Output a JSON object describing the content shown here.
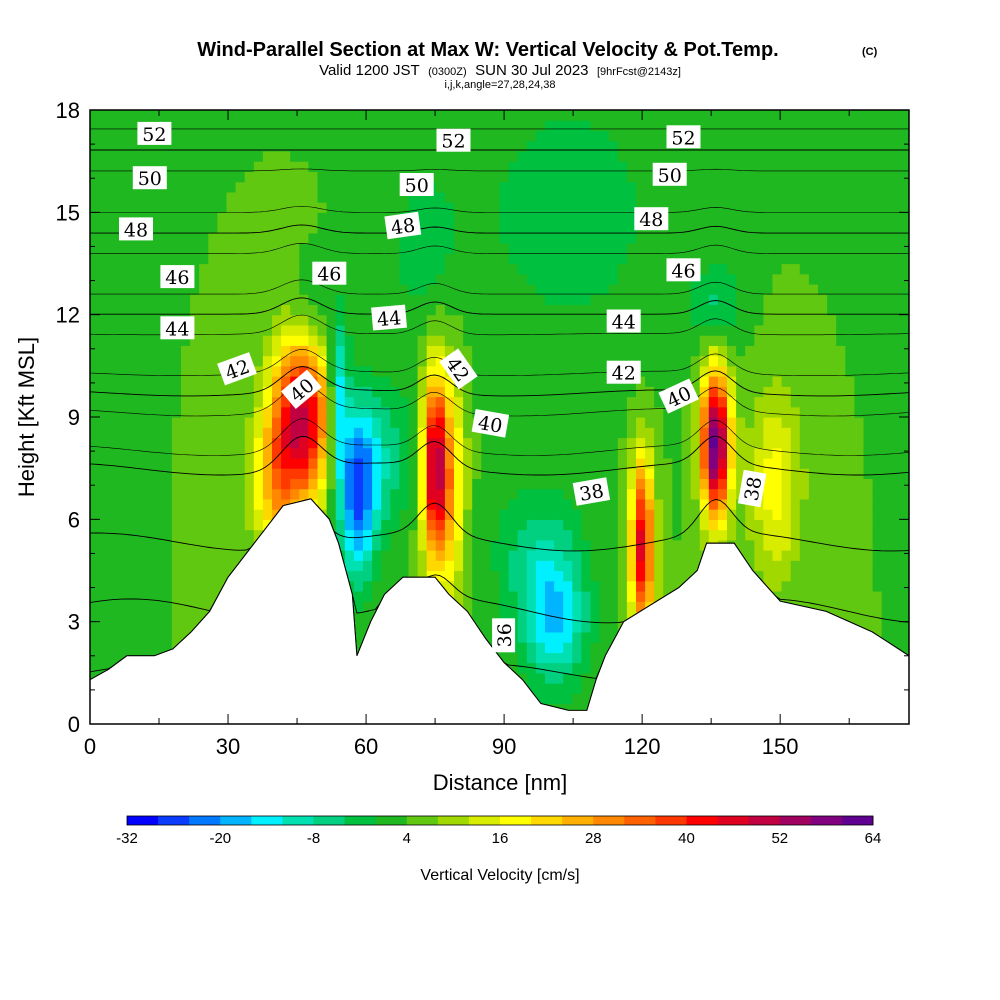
{
  "chart_data": {
    "type": "heatmap",
    "title": "Wind-Parallel Section at Max W: Vertical Velocity & Pot.Temp.",
    "copyright": "(C)",
    "subtitle": {
      "prefix": "Valid 1200 JST",
      "utc": "(0300Z)",
      "date": "SUN 30 Jul 2023",
      "fcst": "[9hrFcst@2143z]"
    },
    "indices": "i,j,k,angle=27,28,24,38",
    "xlabel": "Distance [nm]",
    "ylabel": "Height [Kft MSL]",
    "xlim": [
      0,
      178
    ],
    "ylim": [
      0,
      18
    ],
    "x_ticks": [
      "0",
      "30",
      "60",
      "90",
      "120",
      "150"
    ],
    "y_ticks": [
      "0",
      "3",
      "6",
      "9",
      "12",
      "15",
      "18"
    ],
    "colorbar": {
      "label": "Vertical Velocity [cm/s]",
      "tick_labels": [
        "-32",
        "-20",
        "-8",
        "4",
        "16",
        "28",
        "40",
        "52",
        "64"
      ],
      "colors": [
        "#0000ff",
        "#0a3cff",
        "#0078ff",
        "#00b4ff",
        "#00f0ff",
        "#00e0b0",
        "#00d080",
        "#00c040",
        "#20b820",
        "#60c810",
        "#a0d800",
        "#d8ec00",
        "#ffff00",
        "#ffd800",
        "#ffb000",
        "#ff8800",
        "#ff6000",
        "#ff3800",
        "#ff0000",
        "#e00020",
        "#c00040",
        "#a00060",
        "#800080",
        "#600090"
      ]
    },
    "background_value": 4,
    "terrain_profile": [
      [
        0,
        1.3
      ],
      [
        4,
        1.6
      ],
      [
        8,
        2.0
      ],
      [
        14,
        2.0
      ],
      [
        18,
        2.2
      ],
      [
        22,
        2.7
      ],
      [
        26,
        3.3
      ],
      [
        30,
        4.3
      ],
      [
        34,
        5.0
      ],
      [
        38,
        5.7
      ],
      [
        42,
        6.4
      ],
      [
        48,
        6.6
      ],
      [
        52,
        6.0
      ],
      [
        54,
        5.3
      ],
      [
        57,
        3.8
      ],
      [
        58,
        2.0
      ],
      [
        61,
        3.0
      ],
      [
        64,
        3.8
      ],
      [
        68,
        4.3
      ],
      [
        75,
        4.3
      ],
      [
        78,
        3.8
      ],
      [
        82,
        3.3
      ],
      [
        86,
        2.5
      ],
      [
        90,
        1.8
      ],
      [
        94,
        1.3
      ],
      [
        98,
        0.6
      ],
      [
        104,
        0.4
      ],
      [
        108,
        0.4
      ],
      [
        110,
        1.3
      ],
      [
        112,
        2.0
      ],
      [
        116,
        3.0
      ],
      [
        122,
        3.5
      ],
      [
        128,
        4.0
      ],
      [
        132,
        4.5
      ],
      [
        134,
        5.3
      ],
      [
        140,
        5.3
      ],
      [
        144,
        4.5
      ],
      [
        150,
        3.6
      ],
      [
        160,
        3.3
      ],
      [
        170,
        2.7
      ],
      [
        178,
        2.0
      ]
    ],
    "w_features": [
      {
        "x": 46,
        "y": 9.0,
        "sx": 4.5,
        "sy": 1.8,
        "w": 45
      },
      {
        "x": 40,
        "y": 7.0,
        "sx": 3.5,
        "sy": 1.5,
        "w": 18
      },
      {
        "x": 58,
        "y": 6.8,
        "sx": 3.0,
        "sy": 1.8,
        "w": -28
      },
      {
        "x": 64,
        "y": 7.8,
        "sx": 5.0,
        "sy": 1.5,
        "w": -10
      },
      {
        "x": 75,
        "y": 7.5,
        "sx": 2.0,
        "sy": 2.0,
        "w": 48
      },
      {
        "x": 79,
        "y": 7.0,
        "sx": 2.0,
        "sy": 2.5,
        "w": 16
      },
      {
        "x": 101,
        "y": 3.0,
        "sx": 5.0,
        "sy": 1.4,
        "w": -18
      },
      {
        "x": 97,
        "y": 5.0,
        "sx": 7.0,
        "sy": 1.5,
        "w": -9
      },
      {
        "x": 120,
        "y": 5.2,
        "sx": 1.8,
        "sy": 1.8,
        "w": 42
      },
      {
        "x": 136,
        "y": 8.2,
        "sx": 2.2,
        "sy": 1.5,
        "w": 58
      },
      {
        "x": 149,
        "y": 7.0,
        "sx": 4.0,
        "sy": 2.0,
        "w": 14
      },
      {
        "x": 54,
        "y": 9.6,
        "sx": 1.5,
        "sy": 1.5,
        "w": -22
      },
      {
        "x": 48,
        "y": 12.0,
        "sx": 4.0,
        "sy": 1.0,
        "w": -8
      },
      {
        "x": 136,
        "y": 12.3,
        "sx": 4.0,
        "sy": 0.8,
        "w": -9
      },
      {
        "x": 104,
        "y": 15.0,
        "sx": 16.0,
        "sy": 3.0,
        "w": -6
      },
      {
        "x": 72,
        "y": 14.0,
        "sx": 6.0,
        "sy": 2.0,
        "w": -5
      }
    ],
    "theta_contours": [
      {
        "value": 36,
        "label": "36"
      },
      {
        "value": 38,
        "label": "38"
      },
      {
        "value": 40,
        "label": "40"
      },
      {
        "value": 42,
        "label": "42"
      },
      {
        "value": 44,
        "label": "44"
      },
      {
        "value": 46,
        "label": "46"
      },
      {
        "value": 48,
        "label": "48"
      },
      {
        "value": 50,
        "label": "50"
      },
      {
        "value": 52,
        "label": "52"
      }
    ],
    "contour_labels": [
      {
        "text": "52",
        "x": 14,
        "y": 17.3,
        "rot": 0
      },
      {
        "text": "52",
        "x": 79,
        "y": 17.1,
        "rot": 0
      },
      {
        "text": "52",
        "x": 129,
        "y": 17.2,
        "rot": 0
      },
      {
        "text": "50",
        "x": 13,
        "y": 16.0,
        "rot": 0
      },
      {
        "text": "50",
        "x": 71,
        "y": 15.8,
        "rot": 0
      },
      {
        "text": "50",
        "x": 126,
        "y": 16.1,
        "rot": 0
      },
      {
        "text": "48",
        "x": 10,
        "y": 14.5,
        "rot": 0
      },
      {
        "text": "48",
        "x": 68,
        "y": 14.6,
        "rot": -8
      },
      {
        "text": "48",
        "x": 122,
        "y": 14.8,
        "rot": 0
      },
      {
        "text": "46",
        "x": 19,
        "y": 13.1,
        "rot": 0
      },
      {
        "text": "46",
        "x": 52,
        "y": 13.2,
        "rot": 0
      },
      {
        "text": "46",
        "x": 129,
        "y": 13.3,
        "rot": 0
      },
      {
        "text": "44",
        "x": 19,
        "y": 11.6,
        "rot": 0
      },
      {
        "text": "44",
        "x": 65,
        "y": 11.9,
        "rot": -5
      },
      {
        "text": "44",
        "x": 116,
        "y": 11.8,
        "rot": 0
      },
      {
        "text": "42",
        "x": 32,
        "y": 10.4,
        "rot": -20
      },
      {
        "text": "42",
        "x": 80,
        "y": 10.4,
        "rot": 55
      },
      {
        "text": "42",
        "x": 116,
        "y": 10.3,
        "rot": 0
      },
      {
        "text": "40",
        "x": 46,
        "y": 9.8,
        "rot": -40
      },
      {
        "text": "40",
        "x": 87,
        "y": 8.8,
        "rot": 10
      },
      {
        "text": "40",
        "x": 128,
        "y": 9.6,
        "rot": -25
      },
      {
        "text": "38",
        "x": 109,
        "y": 6.8,
        "rot": -10
      },
      {
        "text": "38",
        "x": 144,
        "y": 6.9,
        "rot": -80
      },
      {
        "text": "36",
        "x": 90,
        "y": 2.6,
        "rot": -90
      }
    ]
  }
}
